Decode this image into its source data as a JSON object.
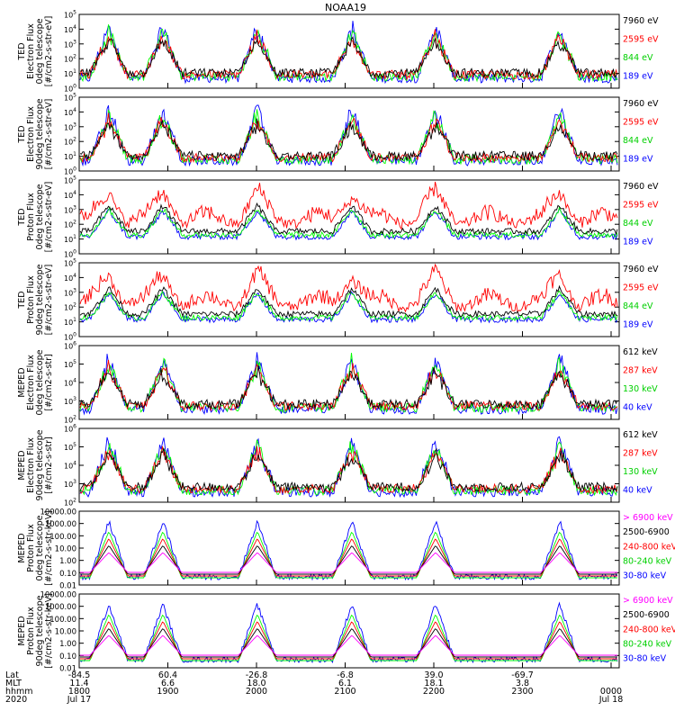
{
  "title": "NOAA19",
  "colors": {
    "black": "#000000",
    "red": "#ff0000",
    "green": "#00ff00",
    "blue": "#0000ff",
    "magenta": "#ff00ff"
  },
  "chart_data": [
    {
      "type": "line",
      "ylabel": [
        "TED",
        "Electron Flux",
        "0deg telescope",
        "[#/cm2-s-str-eV]"
      ],
      "scale": "log",
      "ylim": [
        1,
        100000
      ],
      "ytick_labels": [
        "10^0",
        "10^1",
        "10^2",
        "10^3",
        "10^4",
        "10^5"
      ],
      "legend": [
        {
          "name": "7960 eV",
          "color": "#000000"
        },
        {
          "name": "2595 eV",
          "color": "#ff0000"
        },
        {
          "name": "844 eV",
          "color": "#00ff00"
        },
        {
          "name": "189 eV",
          "color": "#0000ff"
        }
      ]
    },
    {
      "type": "line",
      "ylabel": [
        "TED",
        "Electron Flux",
        "90deg telescope",
        "[#/cm2-s-str-eV]"
      ],
      "scale": "log",
      "ylim": [
        1,
        100000
      ],
      "ytick_labels": [
        "10^0",
        "10^1",
        "10^2",
        "10^3",
        "10^4",
        "10^5"
      ],
      "legend": [
        {
          "name": "7960 eV",
          "color": "#000000"
        },
        {
          "name": "2595 eV",
          "color": "#ff0000"
        },
        {
          "name": "844 eV",
          "color": "#00ff00"
        },
        {
          "name": "189 eV",
          "color": "#0000ff"
        }
      ]
    },
    {
      "type": "line",
      "ylabel": [
        "TED",
        "Proton Flux",
        "0deg telescope",
        "[#/cm2-s-str-eV]"
      ],
      "scale": "log",
      "ylim": [
        1,
        100000
      ],
      "ytick_labels": [
        "10^0",
        "10^1",
        "10^2",
        "10^3",
        "10^4",
        "10^5"
      ],
      "legend": [
        {
          "name": "7960 eV",
          "color": "#000000"
        },
        {
          "name": "2595 eV",
          "color": "#ff0000"
        },
        {
          "name": "844 eV",
          "color": "#00ff00"
        },
        {
          "name": "189 eV",
          "color": "#0000ff"
        }
      ]
    },
    {
      "type": "line",
      "ylabel": [
        "TED",
        "Proton Flux",
        "90deg telescope",
        "[#/cm2-s-str-eV]"
      ],
      "scale": "log",
      "ylim": [
        1,
        100000
      ],
      "ytick_labels": [
        "10^0",
        "10^1",
        "10^2",
        "10^3",
        "10^4",
        "10^5"
      ],
      "legend": [
        {
          "name": "7960 eV",
          "color": "#000000"
        },
        {
          "name": "2595 eV",
          "color": "#ff0000"
        },
        {
          "name": "844 eV",
          "color": "#00ff00"
        },
        {
          "name": "189 eV",
          "color": "#0000ff"
        }
      ]
    },
    {
      "type": "line",
      "ylabel": [
        "MEPED",
        "Electron Flux",
        "0deg telescope",
        "[#/cm2-s-str]"
      ],
      "scale": "log",
      "ylim": [
        100,
        1000000
      ],
      "ytick_labels": [
        "10^2",
        "10^3",
        "10^4",
        "10^5",
        "10^6"
      ],
      "legend": [
        {
          "name": "612 keV",
          "color": "#000000"
        },
        {
          "name": "287 keV",
          "color": "#ff0000"
        },
        {
          "name": "130 keV",
          "color": "#00ff00"
        },
        {
          "name": "40 keV",
          "color": "#0000ff"
        }
      ]
    },
    {
      "type": "line",
      "ylabel": [
        "MEPED",
        "Electron Flux",
        "90deg telescope",
        "[#/cm2-s-str]"
      ],
      "scale": "log",
      "ylim": [
        100,
        1000000
      ],
      "ytick_labels": [
        "10^2",
        "10^3",
        "10^4",
        "10^5",
        "10^6"
      ],
      "legend": [
        {
          "name": "612 keV",
          "color": "#000000"
        },
        {
          "name": "287 keV",
          "color": "#ff0000"
        },
        {
          "name": "130 keV",
          "color": "#00ff00"
        },
        {
          "name": "40 keV",
          "color": "#0000ff"
        }
      ]
    },
    {
      "type": "line",
      "ylabel": [
        "MEPED",
        "Proton Flux",
        "0deg telescope",
        "[#/cm2-s-str-keV]"
      ],
      "scale": "log",
      "ylim": [
        0.01,
        10000
      ],
      "ytick_labels": [
        "0.01",
        "0.10",
        "1.00",
        "10.00",
        "100.00",
        "1000.00",
        "10000.00"
      ],
      "legend": [
        {
          "name": "> 6900 keV",
          "color": "#ff00ff"
        },
        {
          "name": "2500-6900",
          "color": "#000000"
        },
        {
          "name": "240-800 keV",
          "color": "#ff0000"
        },
        {
          "name": "80-240 keV",
          "color": "#00ff00"
        },
        {
          "name": "30-80 keV",
          "color": "#0000ff"
        }
      ]
    },
    {
      "type": "line",
      "ylabel": [
        "MEPED",
        "Proton Flux",
        "90deg telescope",
        "[#/cm2-s-str-keV]"
      ],
      "scale": "log",
      "ylim": [
        0.01,
        10000
      ],
      "ytick_labels": [
        "0.01",
        "0.10",
        "1.00",
        "10.00",
        "100.00",
        "1000.00",
        "10000.00"
      ],
      "legend": [
        {
          "name": "> 6900 keV",
          "color": "#ff00ff"
        },
        {
          "name": "2500-6900",
          "color": "#000000"
        },
        {
          "name": "240-800 keV",
          "color": "#ff0000"
        },
        {
          "name": "80-240 keV",
          "color": "#00ff00"
        },
        {
          "name": "30-80 keV",
          "color": "#0000ff"
        }
      ]
    }
  ],
  "xaxis": {
    "row_labels": [
      "Lat",
      "MLT",
      "hhmm",
      "2020"
    ],
    "ticks": [
      {
        "lat": "-84.5",
        "mlt": "11.4",
        "hhmm": "1800",
        "date": "Jul 17"
      },
      {
        "lat": "60.4",
        "mlt": "6.6",
        "hhmm": "1900",
        "date": ""
      },
      {
        "lat": "-26.8",
        "mlt": "18.0",
        "hhmm": "2000",
        "date": ""
      },
      {
        "lat": "-6.8",
        "mlt": "6.1",
        "hhmm": "2100",
        "date": ""
      },
      {
        "lat": "39.0",
        "mlt": "18.1",
        "hhmm": "2200",
        "date": ""
      },
      {
        "lat": "-69.7",
        "mlt": "3.8",
        "hhmm": "2300",
        "date": ""
      },
      {
        "lat": "",
        "mlt": "",
        "hhmm": "0000",
        "date": "Jul 18"
      }
    ]
  }
}
